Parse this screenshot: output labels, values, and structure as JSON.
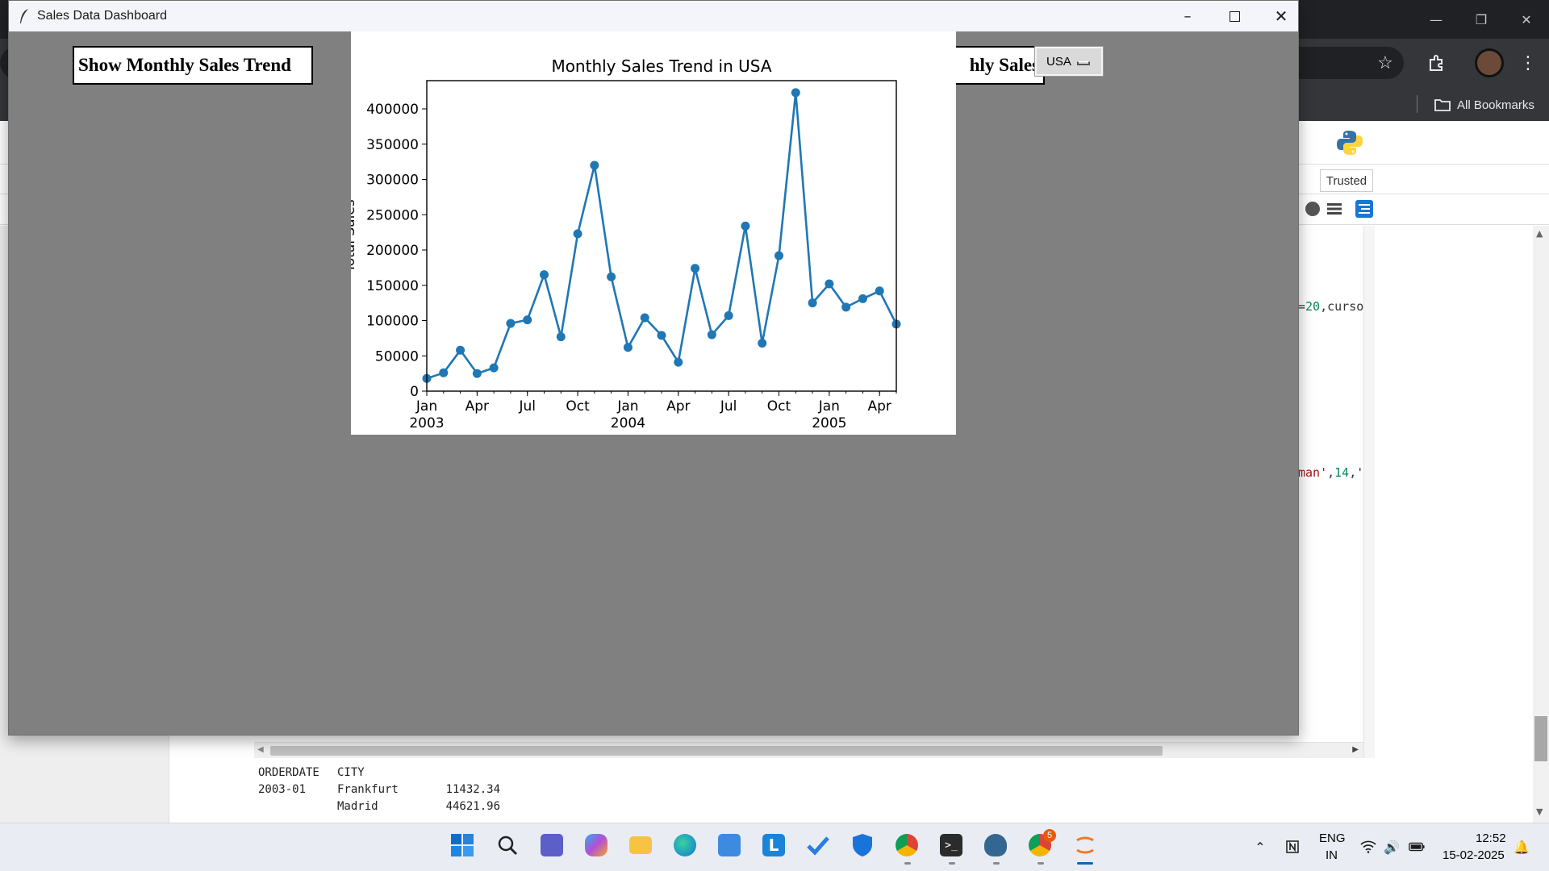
{
  "app": {
    "title": "Sales Data Dashboard",
    "buttons": {
      "show_trend": "Show Monthly Sales Trend",
      "monthly_sales_partial": "hly Sales"
    },
    "country_select": {
      "value": "USA"
    }
  },
  "chart_data": {
    "type": "line",
    "title": "Monthly Sales Trend in USA",
    "xlabel": "",
    "ylabel": "Total Sales",
    "x": [
      "2003-01",
      "2003-02",
      "2003-03",
      "2003-04",
      "2003-05",
      "2003-06",
      "2003-07",
      "2003-08",
      "2003-09",
      "2003-10",
      "2003-11",
      "2003-12",
      "2004-01",
      "2004-02",
      "2004-03",
      "2004-04",
      "2004-05",
      "2004-06",
      "2004-07",
      "2004-08",
      "2004-09",
      "2004-10",
      "2004-11",
      "2004-12",
      "2005-01",
      "2005-02",
      "2005-03",
      "2005-04",
      "2005-05"
    ],
    "y": [
      18000,
      26000,
      58000,
      25000,
      33000,
      96000,
      101000,
      165000,
      77000,
      223000,
      320000,
      162000,
      62000,
      104000,
      79000,
      41000,
      174000,
      80000,
      107000,
      234000,
      68000,
      192000,
      423000,
      125000,
      152000,
      119000,
      131000,
      142000,
      95000
    ],
    "ylim": [
      0,
      440000
    ],
    "yticks": [
      0,
      50000,
      100000,
      150000,
      200000,
      250000,
      300000,
      350000,
      400000
    ],
    "xticks": [
      {
        "month": "2003-01",
        "label": "Jan",
        "year": "2003"
      },
      {
        "month": "2003-04",
        "label": "Apr",
        "year": ""
      },
      {
        "month": "2003-07",
        "label": "Jul",
        "year": ""
      },
      {
        "month": "2003-10",
        "label": "Oct",
        "year": ""
      },
      {
        "month": "2004-01",
        "label": "Jan",
        "year": "2004"
      },
      {
        "month": "2004-04",
        "label": "Apr",
        "year": ""
      },
      {
        "month": "2004-07",
        "label": "Jul",
        "year": ""
      },
      {
        "month": "2004-10",
        "label": "Oct",
        "year": ""
      },
      {
        "month": "2005-01",
        "label": "Jan",
        "year": "2005"
      },
      {
        "month": "2005-04",
        "label": "Apr",
        "year": ""
      }
    ],
    "color": "#1f77b4",
    "grid": false,
    "marker": "circle"
  },
  "browser": {
    "bookmarks_label": "All Bookmarks",
    "notebook": {
      "trusted_label": "Trusted",
      "code_snippet_1": {
        "plain": "=",
        "num": "20",
        "rest": ",curso"
      },
      "code_snippet_2": {
        "str": "man'",
        "plain": ",",
        "num": "14",
        "rest": ",'"
      },
      "output": {
        "headers": [
          "ORDERDATE",
          "CITY"
        ],
        "rows": [
          {
            "date": "2003-01",
            "city": "Frankfurt",
            "value": "11432.34"
          },
          {
            "date": "",
            "city": "Madrid",
            "value": "44621.96"
          }
        ]
      }
    }
  },
  "taskbar": {
    "language_top": "ENG",
    "language_bottom": "IN",
    "time": "12:52",
    "date": "15-02-2025",
    "chrome_badge": "5"
  },
  "colors": {
    "app_background": "#808080",
    "chart_line": "#1f77b4",
    "taskbar": "#e9edf3",
    "browser_chrome": "#35363a"
  }
}
